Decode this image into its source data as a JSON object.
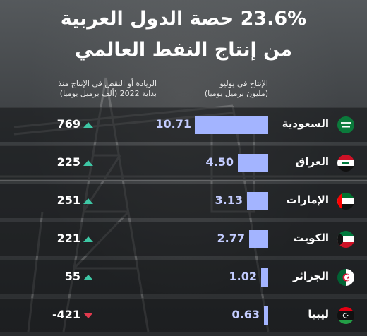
{
  "title": {
    "line1": "23.6% حصة الدول العربية",
    "line2": "من إنتاج النفط العالمي"
  },
  "headers": {
    "production_line1": "الإنتاج في يوليو",
    "production_line2": "(مليون برميل يوميا)",
    "change_line1": "الزيادة أو النقص في الإنتاج منذ",
    "change_line2": "بداية 2022  (ألف برميل يوميا)"
  },
  "colors": {
    "bar": "#a3b4ff",
    "up": "#3ec7a5",
    "down": "#e23a4e"
  },
  "chart_data": {
    "type": "bar",
    "orientation": "horizontal",
    "title": "23.6% حصة الدول العربية من إنتاج النفط العالمي",
    "categories": [
      "السعودية",
      "العراق",
      "الإمارات",
      "الكويت",
      "الجزائر",
      "ليبيا"
    ],
    "series": [
      {
        "name": "الإنتاج في يوليو (مليون برميل يوميا)",
        "values": [
          10.71,
          4.5,
          3.13,
          2.77,
          1.02,
          0.63
        ],
        "labels": [
          "10.71",
          "4.50",
          "3.13",
          "2.77",
          "1.02",
          "0.63"
        ]
      },
      {
        "name": "الزيادة أو النقص في الإنتاج منذ بداية 2022 (ألف برميل يوميا)",
        "values": [
          769,
          225,
          251,
          221,
          55,
          -421
        ],
        "labels": [
          "769",
          "225",
          "251",
          "221",
          "55",
          "-421"
        ]
      }
    ]
  },
  "rows": [
    {
      "country": "السعودية",
      "flag": "saudi-arabia-flag",
      "production": "10.71",
      "change": "769",
      "direction": "up"
    },
    {
      "country": "العراق",
      "flag": "iraq-flag",
      "production": "4.50",
      "change": "225",
      "direction": "up"
    },
    {
      "country": "الإمارات",
      "flag": "uae-flag",
      "production": "3.13",
      "change": "251",
      "direction": "up"
    },
    {
      "country": "الكويت",
      "flag": "kuwait-flag",
      "production": "2.77",
      "change": "221",
      "direction": "up"
    },
    {
      "country": "الجزائر",
      "flag": "algeria-flag",
      "production": "1.02",
      "change": "55",
      "direction": "up"
    },
    {
      "country": "ليبيا",
      "flag": "libya-flag",
      "production": "0.63",
      "change": "-421",
      "direction": "down"
    }
  ]
}
